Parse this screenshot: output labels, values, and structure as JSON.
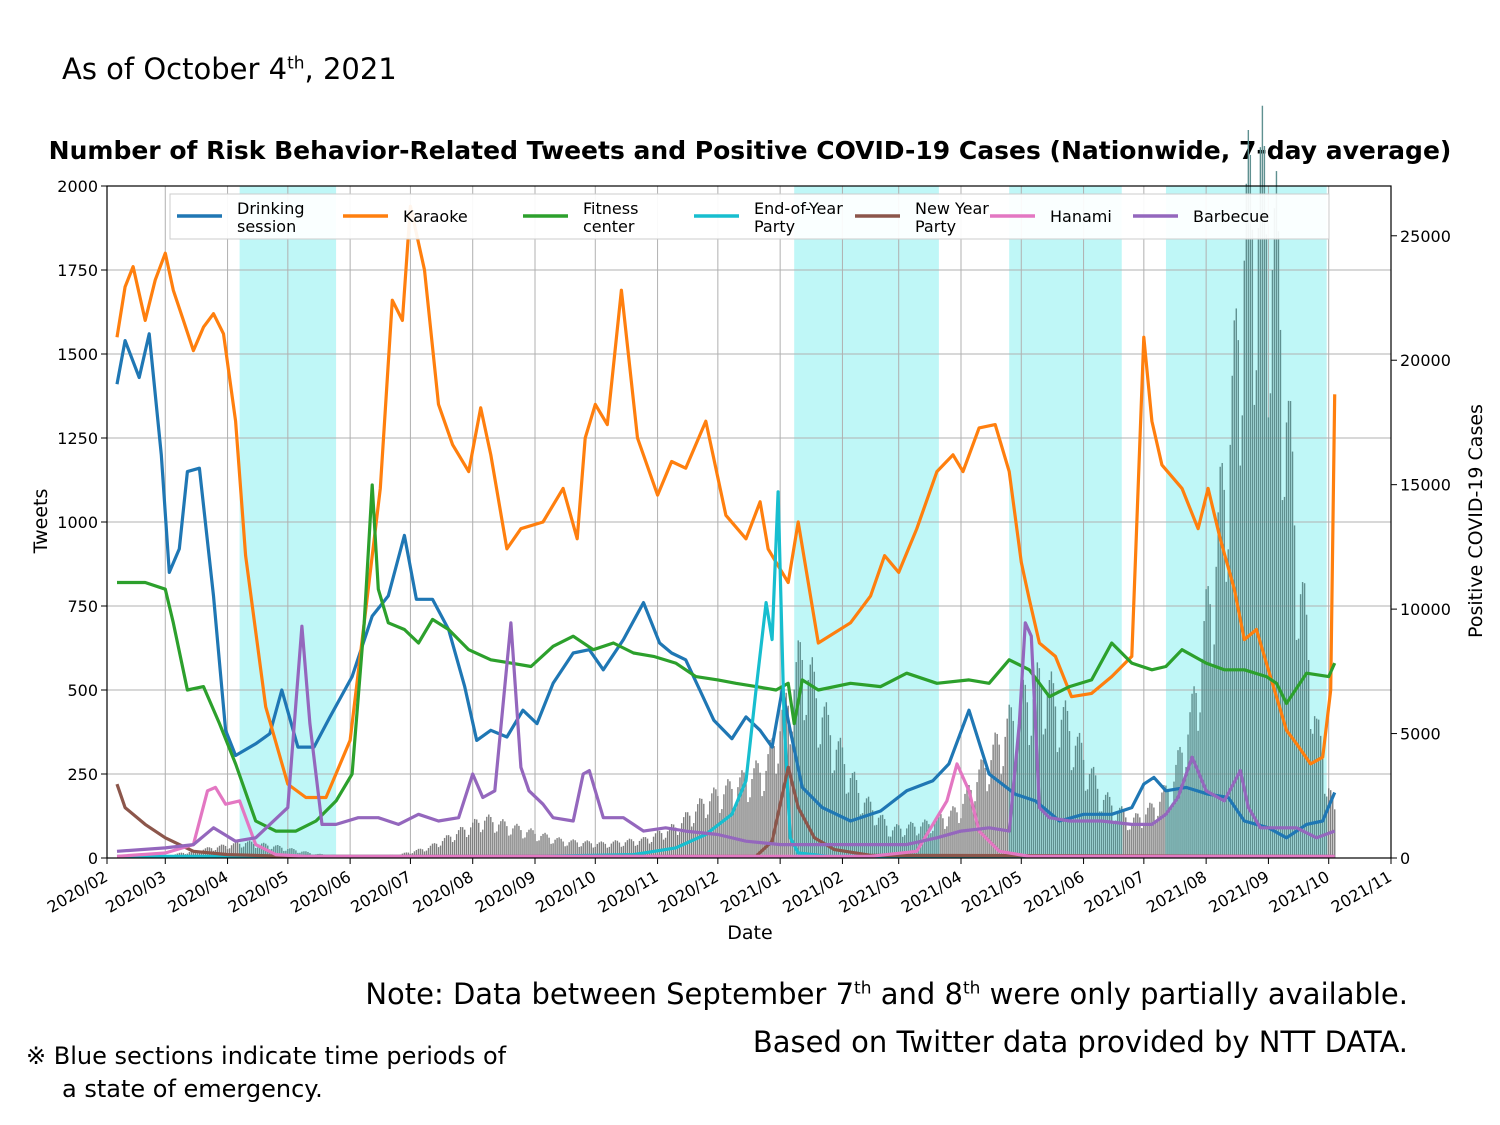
{
  "header": {
    "asof_prefix": "As of October 4",
    "asof_sup": "th",
    "asof_suffix": ", 2021"
  },
  "footer": {
    "note_a": "Note: Data between September 7",
    "note_sup1": "th",
    "note_b": " and 8",
    "note_sup2": "th",
    "note_c": " were only partially available.",
    "credit": "Based on Twitter data provided by NTT DATA.",
    "emergency_line1": "※ Blue sections indicate time periods of",
    "emergency_line2": "a state of emergency."
  },
  "chart_data": {
    "type": "line",
    "title": "Number of Risk Behavior-Related Tweets and Positive COVID-19 Cases (Nationwide, 7-day average)",
    "xlabel": "Date",
    "ylabel": "Tweets",
    "y2label": "Positive COVID-19 Cases",
    "xlim": [
      "2020-02-01",
      "2021-11-01"
    ],
    "ylim": [
      0,
      2000
    ],
    "y2lim": [
      0,
      27000
    ],
    "yticks": [
      0,
      250,
      500,
      750,
      1000,
      1250,
      1500,
      1750,
      2000
    ],
    "y2ticks": [
      0,
      5000,
      10000,
      15000,
      20000,
      25000
    ],
    "xticks": [
      "2020/02",
      "2020/03",
      "2020/04",
      "2020/05",
      "2020/06",
      "2020/07",
      "2020/08",
      "2020/09",
      "2020/10",
      "2020/11",
      "2020/12",
      "2021/01",
      "2021/02",
      "2021/03",
      "2021/04",
      "2021/05",
      "2021/06",
      "2021/07",
      "2021/08",
      "2021/09",
      "2021/10",
      "2021/11"
    ],
    "grid": true,
    "legend_position": "top",
    "emergency_periods": [
      [
        "2020-04-07",
        "2020-05-25"
      ],
      [
        "2021-01-08",
        "2021-03-21"
      ],
      [
        "2021-04-25",
        "2021-06-20"
      ],
      [
        "2021-07-12",
        "2021-09-30"
      ]
    ],
    "emergency_color": "#bff7f7",
    "cases_color": "#7f7f7f",
    "cases_color_emergency": "#5f9090",
    "cases": {
      "dates": [
        "2020-02-06",
        "2020-03-01",
        "2020-03-25",
        "2020-04-10",
        "2020-04-25",
        "2020-05-15",
        "2020-06-05",
        "2020-06-25",
        "2020-07-10",
        "2020-07-25",
        "2020-08-07",
        "2020-08-25",
        "2020-09-15",
        "2020-10-05",
        "2020-10-25",
        "2020-11-10",
        "2020-11-25",
        "2020-12-10",
        "2020-12-25",
        "2021-01-05",
        "2021-01-12",
        "2021-01-25",
        "2021-02-10",
        "2021-02-25",
        "2021-03-15",
        "2021-03-30",
        "2021-04-15",
        "2021-04-30",
        "2021-05-12",
        "2021-05-25",
        "2021-06-10",
        "2021-06-25",
        "2021-07-05",
        "2021-07-15",
        "2021-07-25",
        "2021-08-05",
        "2021-08-15",
        "2021-08-20",
        "2021-08-28",
        "2021-09-05",
        "2021-09-15",
        "2021-09-25",
        "2021-10-04"
      ],
      "values": [
        5,
        80,
        400,
        600,
        450,
        150,
        60,
        120,
        400,
        1000,
        1500,
        1100,
        650,
        550,
        700,
        1200,
        2200,
        2800,
        3500,
        6000,
        7800,
        5000,
        2400,
        1100,
        1300,
        1800,
        3800,
        5800,
        6800,
        5000,
        2400,
        1400,
        1900,
        2800,
        5500,
        11000,
        18000,
        24000,
        25500,
        23000,
        12000,
        5000,
        1700
      ]
    },
    "series": [
      {
        "name": "Drinking session",
        "color": "#1f77b4",
        "dates": [
          "2020-02-06",
          "2020-02-10",
          "2020-02-17",
          "2020-02-22",
          "2020-02-28",
          "2020-03-03",
          "2020-03-08",
          "2020-03-12",
          "2020-03-18",
          "2020-03-25",
          "2020-03-31",
          "2020-04-05",
          "2020-04-15",
          "2020-04-22",
          "2020-04-28",
          "2020-05-06",
          "2020-05-14",
          "2020-05-22",
          "2020-06-02",
          "2020-06-12",
          "2020-06-20",
          "2020-06-28",
          "2020-07-04",
          "2020-07-12",
          "2020-07-20",
          "2020-07-28",
          "2020-08-03",
          "2020-08-10",
          "2020-08-18",
          "2020-08-26",
          "2020-09-02",
          "2020-09-10",
          "2020-09-20",
          "2020-09-28",
          "2020-10-05",
          "2020-10-15",
          "2020-10-25",
          "2020-11-02",
          "2020-11-08",
          "2020-11-15",
          "2020-11-22",
          "2020-11-29",
          "2020-12-08",
          "2020-12-15",
          "2020-12-22",
          "2020-12-28",
          "2021-01-02",
          "2021-01-06",
          "2021-01-12",
          "2021-01-22",
          "2021-02-05",
          "2021-02-20",
          "2021-03-05",
          "2021-03-18",
          "2021-03-26",
          "2021-04-05",
          "2021-04-15",
          "2021-04-28",
          "2021-05-08",
          "2021-05-20",
          "2021-06-01",
          "2021-06-15",
          "2021-06-25",
          "2021-07-01",
          "2021-07-06",
          "2021-07-12",
          "2021-07-22",
          "2021-08-02",
          "2021-08-12",
          "2021-08-20",
          "2021-09-01",
          "2021-09-10",
          "2021-09-20",
          "2021-09-28",
          "2021-10-04"
        ],
        "values": [
          1410,
          1540,
          1430,
          1560,
          1200,
          850,
          920,
          1150,
          1160,
          780,
          380,
          305,
          340,
          370,
          500,
          330,
          330,
          420,
          540,
          720,
          780,
          960,
          770,
          770,
          680,
          510,
          350,
          380,
          360,
          440,
          400,
          520,
          610,
          620,
          560,
          650,
          760,
          640,
          610,
          590,
          500,
          410,
          355,
          420,
          380,
          330,
          500,
          380,
          210,
          150,
          110,
          140,
          200,
          230,
          280,
          440,
          250,
          190,
          170,
          110,
          130,
          130,
          150,
          220,
          240,
          200,
          210,
          190,
          180,
          110,
          90,
          60,
          100,
          110,
          195
        ]
      },
      {
        "name": "Karaoke",
        "color": "#ff7f0e",
        "dates": [
          "2020-02-06",
          "2020-02-10",
          "2020-02-14",
          "2020-02-20",
          "2020-02-25",
          "2020-03-01",
          "2020-03-05",
          "2020-03-10",
          "2020-03-15",
          "2020-03-20",
          "2020-03-25",
          "2020-03-30",
          "2020-04-05",
          "2020-04-10",
          "2020-04-20",
          "2020-05-01",
          "2020-05-10",
          "2020-05-20",
          "2020-06-01",
          "2020-06-08",
          "2020-06-16",
          "2020-06-22",
          "2020-06-27",
          "2020-07-01",
          "2020-07-08",
          "2020-07-15",
          "2020-07-22",
          "2020-07-30",
          "2020-08-05",
          "2020-08-10",
          "2020-08-18",
          "2020-08-25",
          "2020-09-05",
          "2020-09-15",
          "2020-09-22",
          "2020-09-26",
          "2020-10-01",
          "2020-10-07",
          "2020-10-14",
          "2020-10-22",
          "2020-11-01",
          "2020-11-08",
          "2020-11-15",
          "2020-11-25",
          "2020-12-05",
          "2020-12-15",
          "2020-12-22",
          "2020-12-26",
          "2020-12-31",
          "2021-01-05",
          "2021-01-10",
          "2021-01-20",
          "2021-02-05",
          "2021-02-15",
          "2021-02-22",
          "2021-03-01",
          "2021-03-10",
          "2021-03-20",
          "2021-03-28",
          "2021-04-02",
          "2021-04-10",
          "2021-04-18",
          "2021-04-25",
          "2021-05-01",
          "2021-05-05",
          "2021-05-10",
          "2021-05-18",
          "2021-05-26",
          "2021-06-05",
          "2021-06-15",
          "2021-06-25",
          "2021-07-01",
          "2021-07-05",
          "2021-07-10",
          "2021-07-20",
          "2021-07-28",
          "2021-08-02",
          "2021-08-08",
          "2021-08-15",
          "2021-08-20",
          "2021-08-26",
          "2021-09-01",
          "2021-09-10",
          "2021-09-15",
          "2021-09-22",
          "2021-09-28",
          "2021-10-02",
          "2021-10-04"
        ],
        "values": [
          1550,
          1700,
          1760,
          1600,
          1720,
          1800,
          1690,
          1600,
          1510,
          1580,
          1620,
          1560,
          1300,
          900,
          450,
          220,
          180,
          180,
          350,
          700,
          1100,
          1660,
          1600,
          1940,
          1750,
          1350,
          1230,
          1150,
          1340,
          1200,
          920,
          980,
          1000,
          1100,
          950,
          1250,
          1350,
          1290,
          1690,
          1250,
          1080,
          1180,
          1160,
          1300,
          1020,
          950,
          1060,
          920,
          870,
          820,
          1000,
          640,
          700,
          780,
          900,
          850,
          980,
          1150,
          1200,
          1150,
          1280,
          1290,
          1150,
          880,
          770,
          640,
          600,
          480,
          490,
          540,
          600,
          1550,
          1300,
          1170,
          1100,
          980,
          1100,
          950,
          800,
          650,
          680,
          560,
          380,
          340,
          280,
          300,
          500,
          1380
        ]
      },
      {
        "name": "Fitness center",
        "color": "#2ca02c",
        "dates": [
          "2020-02-06",
          "2020-02-20",
          "2020-03-01",
          "2020-03-05",
          "2020-03-12",
          "2020-03-20",
          "2020-03-28",
          "2020-04-05",
          "2020-04-15",
          "2020-04-25",
          "2020-05-05",
          "2020-05-15",
          "2020-05-25",
          "2020-06-02",
          "2020-06-08",
          "2020-06-12",
          "2020-06-15",
          "2020-06-20",
          "2020-06-28",
          "2020-07-05",
          "2020-07-12",
          "2020-07-20",
          "2020-07-30",
          "2020-08-10",
          "2020-08-20",
          "2020-08-30",
          "2020-09-10",
          "2020-09-20",
          "2020-09-30",
          "2020-10-10",
          "2020-10-20",
          "2020-10-30",
          "2020-11-10",
          "2020-11-20",
          "2020-12-01",
          "2020-12-10",
          "2020-12-20",
          "2020-12-30",
          "2021-01-05",
          "2021-01-08",
          "2021-01-12",
          "2021-01-20",
          "2021-02-05",
          "2021-02-20",
          "2021-03-05",
          "2021-03-20",
          "2021-04-05",
          "2021-04-15",
          "2021-04-25",
          "2021-05-05",
          "2021-05-15",
          "2021-05-25",
          "2021-06-05",
          "2021-06-15",
          "2021-06-25",
          "2021-07-05",
          "2021-07-12",
          "2021-07-20",
          "2021-08-01",
          "2021-08-10",
          "2021-08-20",
          "2021-08-31",
          "2021-09-05",
          "2021-09-10",
          "2021-09-20",
          "2021-10-01",
          "2021-10-04"
        ],
        "values": [
          820,
          820,
          800,
          700,
          500,
          510,
          400,
          280,
          110,
          80,
          80,
          110,
          170,
          250,
          700,
          1110,
          800,
          700,
          680,
          640,
          710,
          680,
          620,
          590,
          580,
          570,
          630,
          660,
          620,
          640,
          610,
          600,
          580,
          540,
          530,
          520,
          510,
          500,
          520,
          400,
          530,
          500,
          520,
          510,
          550,
          520,
          530,
          520,
          590,
          560,
          480,
          510,
          530,
          640,
          580,
          560,
          570,
          620,
          580,
          560,
          560,
          540,
          520,
          460,
          550,
          540,
          580
        ]
      },
      {
        "name": "End-of-Year Party",
        "color": "#17becf",
        "dates": [
          "2020-02-06",
          "2020-09-01",
          "2020-10-20",
          "2020-11-10",
          "2020-11-25",
          "2020-12-08",
          "2020-12-15",
          "2020-12-20",
          "2020-12-25",
          "2020-12-28",
          "2020-12-31",
          "2021-01-03",
          "2021-01-06",
          "2021-01-10",
          "2021-01-25",
          "2021-10-04"
        ],
        "values": [
          5,
          5,
          10,
          30,
          70,
          130,
          230,
          500,
          760,
          650,
          1090,
          400,
          60,
          15,
          5,
          5
        ]
      },
      {
        "name": "New Year Party",
        "color": "#8c564b",
        "dates": [
          "2020-02-06",
          "2020-02-10",
          "2020-02-20",
          "2020-03-01",
          "2020-03-15",
          "2020-04-01",
          "2020-05-01",
          "2020-12-20",
          "2020-12-28",
          "2021-01-05",
          "2021-01-10",
          "2021-01-18",
          "2021-01-28",
          "2021-02-15",
          "2021-10-04"
        ],
        "values": [
          220,
          150,
          100,
          60,
          20,
          10,
          5,
          5,
          50,
          270,
          150,
          60,
          25,
          8,
          5
        ]
      },
      {
        "name": "Hanami",
        "color": "#e377c2",
        "dates": [
          "2020-02-06",
          "2020-03-01",
          "2020-03-15",
          "2020-03-22",
          "2020-03-26",
          "2020-03-31",
          "2020-04-07",
          "2020-04-15",
          "2020-04-25",
          "2020-05-10",
          "2021-02-15",
          "2021-03-10",
          "2021-03-25",
          "2021-03-30",
          "2021-04-05",
          "2021-04-10",
          "2021-04-20",
          "2021-05-05",
          "2021-10-04"
        ],
        "values": [
          5,
          15,
          40,
          200,
          210,
          160,
          170,
          40,
          10,
          5,
          5,
          20,
          170,
          280,
          200,
          80,
          20,
          5,
          5
        ]
      },
      {
        "name": "Barbecue",
        "color": "#9467bd",
        "dates": [
          "2020-02-06",
          "2020-03-01",
          "2020-03-15",
          "2020-03-25",
          "2020-04-05",
          "2020-04-15",
          "2020-05-01",
          "2020-05-08",
          "2020-05-12",
          "2020-05-18",
          "2020-05-25",
          "2020-06-05",
          "2020-06-15",
          "2020-06-25",
          "2020-07-05",
          "2020-07-15",
          "2020-07-25",
          "2020-08-01",
          "2020-08-06",
          "2020-08-12",
          "2020-08-20",
          "2020-08-25",
          "2020-08-29",
          "2020-09-05",
          "2020-09-10",
          "2020-09-20",
          "2020-09-25",
          "2020-09-28",
          "2020-10-05",
          "2020-10-15",
          "2020-10-25",
          "2020-11-05",
          "2020-11-15",
          "2020-12-01",
          "2020-12-15",
          "2021-01-01",
          "2021-02-01",
          "2021-02-15",
          "2021-03-05",
          "2021-03-20",
          "2021-04-01",
          "2021-04-15",
          "2021-04-25",
          "2021-04-30",
          "2021-05-03",
          "2021-05-06",
          "2021-05-10",
          "2021-05-15",
          "2021-05-25",
          "2021-06-10",
          "2021-06-25",
          "2021-07-05",
          "2021-07-12",
          "2021-07-18",
          "2021-07-25",
          "2021-08-01",
          "2021-08-10",
          "2021-08-18",
          "2021-08-22",
          "2021-08-28",
          "2021-09-05",
          "2021-09-15",
          "2021-09-25",
          "2021-10-04"
        ],
        "values": [
          20,
          30,
          40,
          90,
          50,
          60,
          150,
          690,
          400,
          100,
          100,
          120,
          120,
          100,
          130,
          110,
          120,
          250,
          180,
          200,
          700,
          270,
          200,
          160,
          120,
          110,
          250,
          260,
          120,
          120,
          80,
          90,
          80,
          70,
          50,
          40,
          40,
          40,
          40,
          60,
          80,
          90,
          80,
          400,
          700,
          660,
          150,
          120,
          110,
          110,
          100,
          100,
          130,
          180,
          300,
          200,
          170,
          260,
          150,
          90,
          90,
          90,
          60,
          80
        ]
      }
    ]
  }
}
